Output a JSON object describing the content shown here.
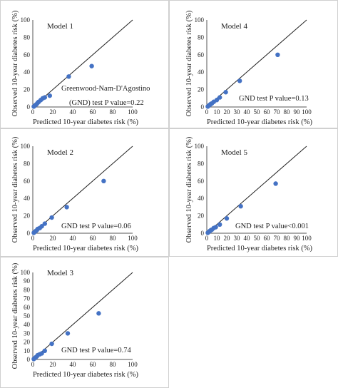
{
  "chart_data": [
    {
      "type": "scatter",
      "panel": "model-1",
      "model_label": "Model 1",
      "xlabel": "Predicted 10-year diabetes risk (%)",
      "ylabel": "Observed 10-year diabetes risk (%)",
      "xlim": [
        0,
        100
      ],
      "ylim": [
        0,
        100
      ],
      "xticks": [
        "0",
        "20",
        "40",
        "60",
        "80",
        "100"
      ],
      "yticks": [
        "0",
        "20",
        "40",
        "60",
        "80",
        "100"
      ],
      "annotation": [
        "Greenwood-Nam-D'Agostino",
        "(GND) test P value=0.22"
      ],
      "reference_line": "diagonal",
      "points": [
        [
          1,
          0.5
        ],
        [
          2,
          1.5
        ],
        [
          3,
          2.5
        ],
        [
          4,
          3.5
        ],
        [
          5,
          5
        ],
        [
          6,
          6
        ],
        [
          8,
          8
        ],
        [
          10,
          10
        ],
        [
          12,
          11
        ],
        [
          17,
          13
        ],
        [
          36,
          35
        ],
        [
          59,
          47
        ]
      ]
    },
    {
      "type": "scatter",
      "panel": "model-4",
      "model_label": "Model 4",
      "xlabel": "Predicted 10-year diabetes risk (%)",
      "ylabel": "Observed 10-year diabetes risk (%)",
      "xlim": [
        0,
        100
      ],
      "ylim": [
        0,
        100
      ],
      "xticks": [
        "0",
        "10",
        "20",
        "30",
        "40",
        "50",
        "60",
        "70",
        "80",
        "90",
        "100"
      ],
      "yticks": [
        "0",
        "20",
        "40",
        "60",
        "80",
        "100"
      ],
      "annotation": [
        "GND test P value=0.13"
      ],
      "reference_line": "diagonal",
      "points": [
        [
          1,
          0.5
        ],
        [
          2,
          1.5
        ],
        [
          3,
          2.5
        ],
        [
          4,
          3.5
        ],
        [
          5,
          4
        ],
        [
          7,
          6
        ],
        [
          10,
          8
        ],
        [
          13,
          11
        ],
        [
          19,
          17
        ],
        [
          33,
          30
        ],
        [
          71,
          60
        ]
      ]
    },
    {
      "type": "scatter",
      "panel": "model-2",
      "model_label": "Model 2",
      "xlabel": "Predicted 10-year diabetes risk (%)",
      "ylabel": "Observed 10-year diabetes risk (%)",
      "xlim": [
        0,
        100
      ],
      "ylim": [
        0,
        100
      ],
      "xticks": [
        "0",
        "20",
        "40",
        "60",
        "80",
        "100"
      ],
      "yticks": [
        "0",
        "20",
        "40",
        "60",
        "80",
        "100"
      ],
      "annotation": [
        "GND test P value=0.06"
      ],
      "reference_line": "diagonal",
      "points": [
        [
          1,
          0.5
        ],
        [
          2,
          1.5
        ],
        [
          3,
          2.5
        ],
        [
          4,
          3.5
        ],
        [
          5,
          5
        ],
        [
          7,
          6
        ],
        [
          9,
          8
        ],
        [
          12,
          11
        ],
        [
          19,
          18
        ],
        [
          34,
          30
        ],
        [
          71,
          60
        ]
      ]
    },
    {
      "type": "scatter",
      "panel": "model-5",
      "model_label": "Model 5",
      "xlabel": "Predicted 10-year diabetes risk (%)",
      "ylabel": "Observed 10-year diabetes risk (%)",
      "xlim": [
        0,
        100
      ],
      "ylim": [
        0,
        100
      ],
      "xticks": [
        "0",
        "10",
        "20",
        "30",
        "40",
        "50",
        "60",
        "70",
        "80",
        "90",
        "100"
      ],
      "yticks": [
        "0",
        "20",
        "40",
        "60",
        "80",
        "100"
      ],
      "annotation": [
        "GND test P value<0.001"
      ],
      "reference_line": "diagonal",
      "points": [
        [
          1,
          0.5
        ],
        [
          2,
          1.5
        ],
        [
          3,
          2.5
        ],
        [
          4,
          3.5
        ],
        [
          5,
          4
        ],
        [
          7,
          6
        ],
        [
          9,
          7
        ],
        [
          13,
          10
        ],
        [
          20,
          17
        ],
        [
          34,
          31
        ],
        [
          69,
          57
        ]
      ]
    },
    {
      "type": "scatter",
      "panel": "model-3",
      "model_label": "Model 3",
      "xlabel": "Predicted 10-year diabetes risk (%)",
      "ylabel": "Observed 10-year diabetes risk (%)",
      "xlim": [
        0,
        100
      ],
      "ylim": [
        0,
        100
      ],
      "xticks": [
        "0",
        "20",
        "40",
        "60",
        "80",
        "100"
      ],
      "yticks": [
        "0",
        "10",
        "20",
        "30",
        "40",
        "50",
        "60",
        "70",
        "80",
        "90",
        "100"
      ],
      "annotation": [
        "GND test P value=0.74"
      ],
      "reference_line": "diagonal",
      "points": [
        [
          1,
          0.5
        ],
        [
          2,
          1.5
        ],
        [
          3,
          2.5
        ],
        [
          4,
          3.5
        ],
        [
          5,
          5
        ],
        [
          7,
          6
        ],
        [
          9,
          7
        ],
        [
          12,
          10
        ],
        [
          19,
          18
        ],
        [
          35,
          30
        ],
        [
          66,
          53
        ]
      ]
    }
  ],
  "colors": {
    "point": "#4472c4",
    "frame": "#d0d0d0",
    "axis": "#555555",
    "line": "#222222"
  }
}
